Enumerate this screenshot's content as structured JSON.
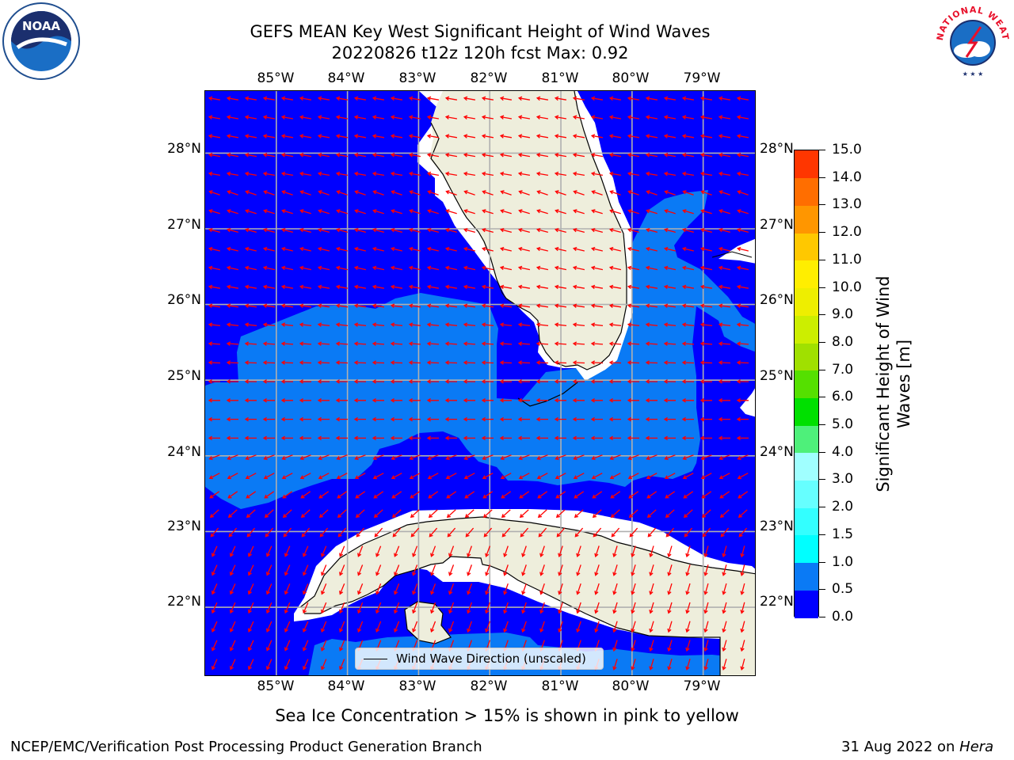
{
  "title": {
    "line1": "GEFS MEAN Key West Significant Height of Wind Waves",
    "line2": "20220826 t12z 120h fcst   Max: 0.92"
  },
  "logos": {
    "left": {
      "icon": "noaa-logo-icon",
      "text": "NOAA"
    },
    "right": {
      "icon": "national-weather-service-logo-icon",
      "text": "NATIONAL WEATHER SERVICE"
    }
  },
  "map": {
    "longitude_labels": [
      "85°W",
      "84°W",
      "83°W",
      "82°W",
      "81°W",
      "80°W",
      "79°W"
    ],
    "latitude_labels": [
      "28°N",
      "27°N",
      "26°N",
      "25°N",
      "24°N",
      "23°N",
      "22°N"
    ],
    "lon_range": [
      -86.0,
      -78.25
    ],
    "lat_range": [
      21.08,
      28.82
    ],
    "colors": {
      "land": "#eeeedc",
      "band_0_0p5": "#0000ff",
      "band_0p5_1": "#0a7af5",
      "arrows": "#ff0000",
      "gridlines": "#b0b0b0",
      "coastline": "#000000"
    }
  },
  "legend": {
    "label": "Wind Wave Direction (unscaled)"
  },
  "colorbar": {
    "title_line1": "Significant Height of Wind",
    "title_line2": "Waves [m]",
    "ticks": [
      "0.0",
      "0.5",
      "1.0",
      "1.5",
      "2.0",
      "3.0",
      "4.0",
      "5.0",
      "6.0",
      "7.0",
      "8.0",
      "9.0",
      "10.0",
      "11.0",
      "12.0",
      "13.0",
      "14.0",
      "15.0"
    ],
    "colors": [
      "#0000ff",
      "#0a7af5",
      "#00ffff",
      "#33ffff",
      "#66ffff",
      "#a0ffff",
      "#4ef07a",
      "#00e000",
      "#55e000",
      "#a0e000",
      "#ccee00",
      "#eeee00",
      "#ffee00",
      "#ffc800",
      "#ff9600",
      "#ff6e00",
      "#ff3600",
      "#ff0000"
    ]
  },
  "sea_ice_note": "Sea Ice Concentration > 15% is shown in pink to yellow",
  "footer": {
    "left": "NCEP/EMC/Verification Post Processing Product Generation Branch",
    "right_prefix": "31 Aug 2022 on ",
    "right_host": "Hera"
  }
}
